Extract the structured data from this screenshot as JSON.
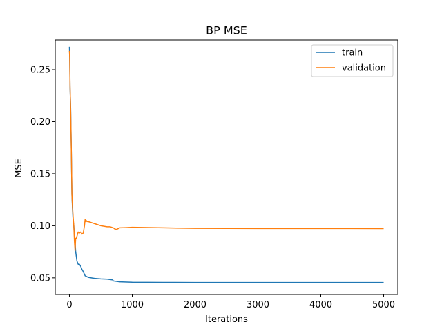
{
  "chart_data": {
    "type": "line",
    "title": "BP MSE",
    "xlabel": "Iterations",
    "ylabel": "MSE",
    "xlim": [
      -225,
      5225
    ],
    "ylim": [
      0.034,
      0.2785
    ],
    "xticks": [
      0,
      1000,
      2000,
      3000,
      4000,
      5000
    ],
    "xtick_labels": [
      "0",
      "1000",
      "2000",
      "3000",
      "4000",
      "5000"
    ],
    "yticks": [
      0.05,
      0.1,
      0.15,
      0.2,
      0.25
    ],
    "ytick_labels": [
      "0.05",
      "0.10",
      "0.15",
      "0.20",
      "0.25"
    ],
    "grid": false,
    "legend_position": "top-right",
    "series": [
      {
        "name": "train",
        "color": "#1f77b4",
        "x": [
          0,
          5,
          10,
          20,
          30,
          40,
          50,
          60,
          70,
          80,
          90,
          100,
          120,
          140,
          160,
          180,
          200,
          220,
          250,
          300,
          400,
          500,
          600,
          690,
          700,
          750,
          800,
          1000,
          1500,
          2000,
          3000,
          4000,
          5000
        ],
        "y": [
          0.272,
          0.262,
          0.232,
          0.213,
          0.175,
          0.13,
          0.115,
          0.105,
          0.1,
          0.09,
          0.085,
          0.075,
          0.066,
          0.063,
          0.063,
          0.061,
          0.058,
          0.056,
          0.052,
          0.0505,
          0.0495,
          0.049,
          0.0487,
          0.048,
          0.047,
          0.0466,
          0.0462,
          0.0458,
          0.0456,
          0.0455,
          0.0455,
          0.0455,
          0.0455
        ]
      },
      {
        "name": "validation",
        "color": "#ff7f0e",
        "x": [
          0,
          5,
          10,
          20,
          30,
          40,
          50,
          60,
          70,
          80,
          90,
          100,
          110,
          120,
          140,
          160,
          180,
          200,
          220,
          240,
          250,
          260,
          270,
          280,
          300,
          350,
          400,
          500,
          600,
          650,
          700,
          720,
          750,
          800,
          900,
          1000,
          1500,
          2000,
          3000,
          4000,
          5000
        ],
        "y": [
          0.268,
          0.262,
          0.235,
          0.21,
          0.175,
          0.13,
          0.118,
          0.108,
          0.1,
          0.085,
          0.076,
          0.088,
          0.088,
          0.09,
          0.094,
          0.093,
          0.094,
          0.092,
          0.093,
          0.1,
          0.106,
          0.104,
          0.105,
          0.104,
          0.104,
          0.103,
          0.102,
          0.1,
          0.099,
          0.099,
          0.098,
          0.097,
          0.0965,
          0.098,
          0.0982,
          0.0985,
          0.098,
          0.0975,
          0.0974,
          0.0974,
          0.0973
        ]
      }
    ]
  }
}
